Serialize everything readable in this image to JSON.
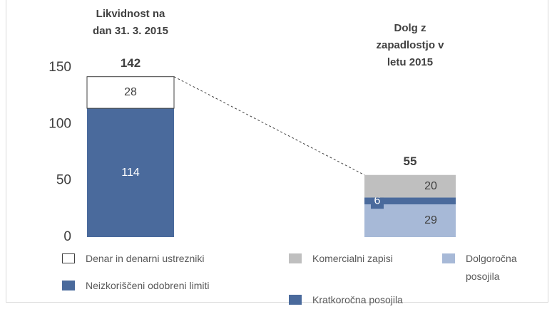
{
  "chart_data": {
    "type": "stacked-bar",
    "categories": [
      "Likvidnost na dan 31. 3. 2015",
      "Dolg z zapadlostjo v letu 2015"
    ],
    "series": [
      {
        "name": "Neizkoriščeni odobreni limiti",
        "color": "#4a6a9c",
        "values": [
          114,
          null
        ]
      },
      {
        "name": "Dolgoročna posojila",
        "color": "#a7b9d7",
        "values": [
          null,
          29
        ]
      },
      {
        "name": "Kratkoročna posojila",
        "color": "#4a6a9c",
        "values": [
          null,
          6
        ]
      },
      {
        "name": "Komercialni  zapisi",
        "color": "#bfbfbf",
        "values": [
          null,
          20
        ]
      },
      {
        "name": "Denar in denarni ustrezniki",
        "color": "#ffffff",
        "values": [
          28,
          null
        ]
      }
    ],
    "totals": [
      142,
      55
    ],
    "ylim": [
      0,
      150
    ],
    "yticks": [
      0,
      50,
      100,
      150
    ]
  }
}
